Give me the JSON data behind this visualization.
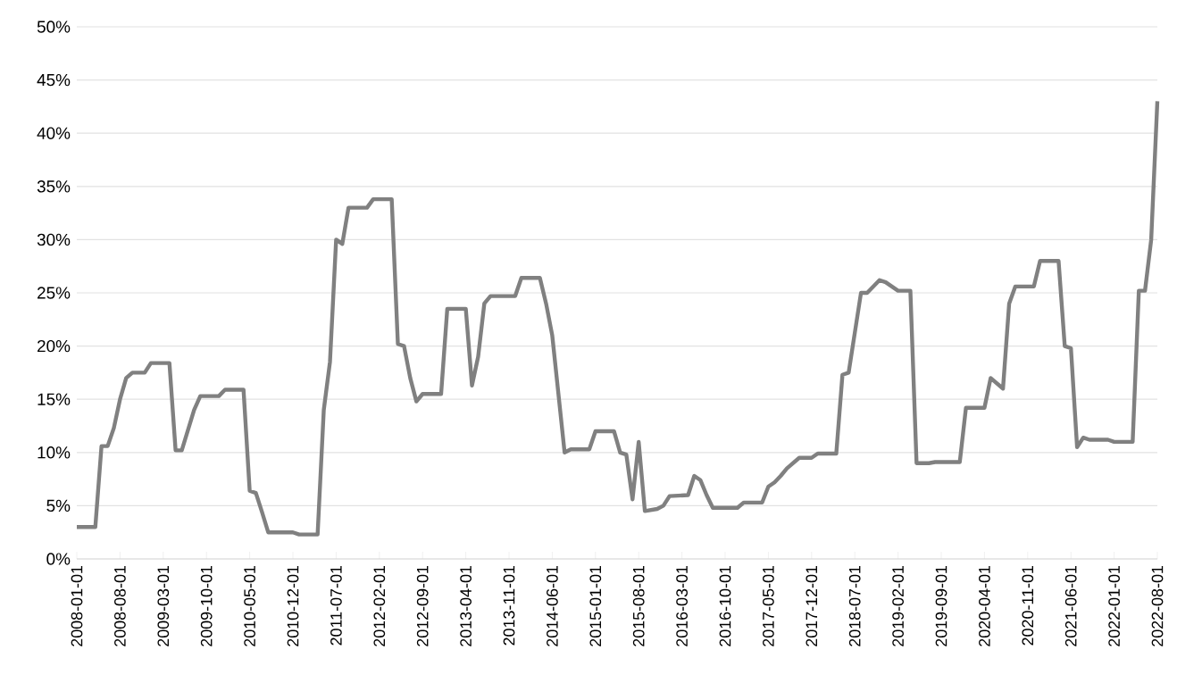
{
  "chart_data": {
    "type": "line",
    "color": "#808080",
    "grid": "y",
    "marker": "none",
    "line_style": "solid",
    "x": [
      "2008-01-01",
      "2008-04-01",
      "2008-05-01",
      "2008-06-01",
      "2008-07-01",
      "2008-08-01",
      "2008-09-01",
      "2008-10-01",
      "2008-12-01",
      "2009-01-01",
      "2009-04-01",
      "2009-05-01",
      "2009-06-01",
      "2009-08-01",
      "2009-09-01",
      "2009-12-01",
      "2010-01-01",
      "2010-04-01",
      "2010-05-01",
      "2010-06-01",
      "2010-07-01",
      "2010-08-01",
      "2010-12-01",
      "2011-01-01",
      "2011-04-01",
      "2011-05-01",
      "2011-06-01",
      "2011-07-01",
      "2011-08-01",
      "2011-09-01",
      "2011-12-01",
      "2012-01-01",
      "2012-04-01",
      "2012-05-01",
      "2012-06-01",
      "2012-07-01",
      "2012-08-01",
      "2012-09-01",
      "2012-12-01",
      "2013-01-01",
      "2013-04-01",
      "2013-05-01",
      "2013-06-01",
      "2013-07-01",
      "2013-08-01",
      "2013-12-01",
      "2014-01-01",
      "2014-04-01",
      "2014-05-01",
      "2014-06-01",
      "2014-08-01",
      "2014-09-01",
      "2014-12-01",
      "2015-01-01",
      "2015-04-01",
      "2015-05-01",
      "2015-06-01",
      "2015-07-01",
      "2015-08-01",
      "2015-09-01",
      "2015-11-01",
      "2015-12-01",
      "2016-01-01",
      "2016-04-01",
      "2016-05-01",
      "2016-06-01",
      "2016-07-01",
      "2016-08-01",
      "2016-12-01",
      "2017-01-01",
      "2017-04-01",
      "2017-05-01",
      "2017-06-01",
      "2017-07-01",
      "2017-08-01",
      "2017-10-01",
      "2017-12-01",
      "2018-01-01",
      "2018-04-01",
      "2018-05-01",
      "2018-06-01",
      "2018-08-01",
      "2018-09-01",
      "2018-11-01",
      "2018-12-01",
      "2019-02-01",
      "2019-04-01",
      "2019-05-01",
      "2019-07-01",
      "2019-08-01",
      "2019-12-01",
      "2020-01-01",
      "2020-04-01",
      "2020-05-01",
      "2020-07-01",
      "2020-08-01",
      "2020-09-01",
      "2020-12-01",
      "2021-01-01",
      "2021-04-01",
      "2021-05-01",
      "2021-06-01",
      "2021-07-01",
      "2021-08-01",
      "2021-09-01",
      "2021-12-01",
      "2022-01-01",
      "2022-04-01",
      "2022-05-01",
      "2022-06-01",
      "2022-07-01",
      "2022-08-01"
    ],
    "values": [
      3.0,
      3.0,
      10.6,
      10.6,
      12.3,
      15,
      17,
      17.5,
      17.5,
      18.4,
      18.4,
      10.2,
      10.2,
      14,
      15.3,
      15.3,
      15.9,
      15.9,
      6.4,
      6.2,
      4.4,
      2.5,
      2.5,
      2.3,
      2.3,
      14,
      18.5,
      30,
      29.6,
      33,
      33,
      33.8,
      33.8,
      20.2,
      20,
      17,
      14.8,
      15.5,
      15.5,
      23.5,
      23.5,
      16.3,
      19,
      24,
      24.7,
      24.7,
      26.4,
      26.4,
      24,
      21,
      10,
      10.3,
      10.3,
      12,
      12,
      10,
      9.8,
      5.6,
      11,
      4.5,
      4.7,
      5,
      5.9,
      6,
      7.8,
      7.4,
      6,
      4.8,
      4.8,
      5.3,
      5.3,
      6.8,
      7.2,
      7.8,
      8.5,
      9.5,
      9.5,
      9.9,
      9.9,
      17.3,
      17.5,
      25,
      25,
      26.2,
      26,
      25.2,
      25.2,
      9,
      9,
      9.1,
      9.1,
      14.2,
      14.2,
      17,
      16,
      24,
      25.6,
      25.6,
      28,
      28,
      20,
      19.8,
      10.5,
      11.4,
      11.2,
      11.2,
      11,
      11,
      25.2,
      25.2,
      30,
      43
    ],
    "xlim": [
      "2008-01-01",
      "2022-08-01"
    ],
    "xticks": [
      "2008-01-01",
      "2008-08-01",
      "2009-03-01",
      "2009-10-01",
      "2010-05-01",
      "2010-12-01",
      "2011-07-01",
      "2012-02-01",
      "2012-09-01",
      "2013-04-01",
      "2013-11-01",
      "2014-06-01",
      "2015-01-01",
      "2015-08-01",
      "2016-03-01",
      "2016-10-01",
      "2017-05-01",
      "2017-12-01",
      "2018-07-01",
      "2019-02-01",
      "2019-09-01",
      "2020-04-01",
      "2020-11-01",
      "2021-06-01",
      "2022-01-01",
      "2022-08-01"
    ],
    "ylim": [
      0,
      50
    ],
    "yticks": [
      {
        "value": 0,
        "label": "0%"
      },
      {
        "value": 5,
        "label": "5%"
      },
      {
        "value": 10,
        "label": "10%"
      },
      {
        "value": 15,
        "label": "15%"
      },
      {
        "value": 20,
        "label": "20%"
      },
      {
        "value": 25,
        "label": "25%"
      },
      {
        "value": 30,
        "label": "30%"
      },
      {
        "value": 35,
        "label": "35%"
      },
      {
        "value": 40,
        "label": "40%"
      },
      {
        "value": 45,
        "label": "45%"
      },
      {
        "value": 50,
        "label": "50%"
      }
    ]
  }
}
